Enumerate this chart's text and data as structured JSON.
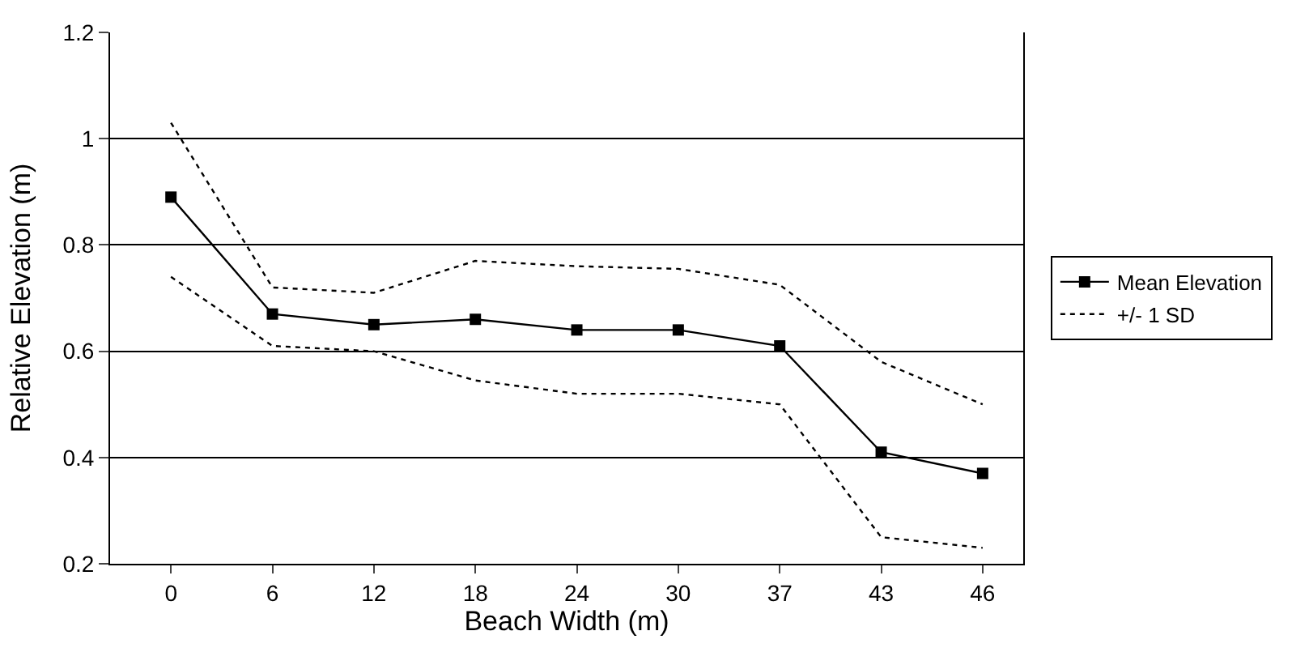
{
  "chart_data": {
    "type": "line",
    "xlabel": "Beach Width (m)",
    "ylabel": "Relative Elevation (m)",
    "categories": [
      "0",
      "6",
      "12",
      "18",
      "24",
      "30",
      "37",
      "43",
      "46"
    ],
    "series": [
      {
        "name": "Mean Elevation",
        "color": "#000000",
        "marker": "square",
        "line_style": "solid",
        "values": [
          0.89,
          0.67,
          0.65,
          0.66,
          0.64,
          0.64,
          0.61,
          0.41,
          0.37
        ]
      },
      {
        "name": "+/- 1 SD",
        "color": "#000000",
        "marker": "none",
        "line_style": "dotted",
        "values": [
          1.03,
          0.72,
          0.71,
          0.77,
          0.76,
          0.755,
          0.725,
          0.58,
          0.5
        ]
      },
      {
        "color": "#000000",
        "marker": "none",
        "line_style": "dotted",
        "values": [
          0.74,
          0.61,
          0.6,
          0.545,
          0.52,
          0.52,
          0.5,
          0.25,
          0.23
        ]
      }
    ],
    "ylim": [
      0.2,
      1.2
    ],
    "yticks": [
      0.2,
      0.4,
      0.6,
      0.8,
      1,
      1.2
    ],
    "grid": "y",
    "legend": "right"
  }
}
